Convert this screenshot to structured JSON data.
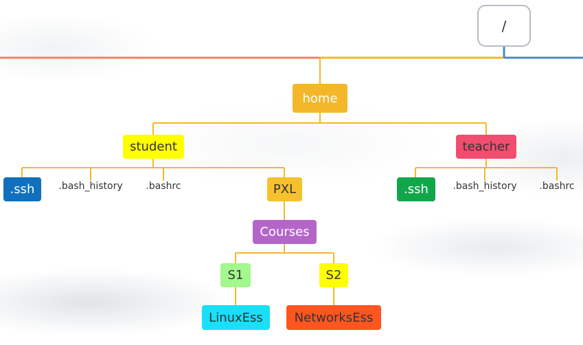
{
  "diagram": {
    "root": {
      "label": "/",
      "color": "#ffffff",
      "text_color": "#333333"
    },
    "home": {
      "label": "home",
      "color": "#f3b729",
      "text_color": "#ffffff"
    },
    "student": {
      "label": "student",
      "color": "#ffff00",
      "text_color": "#333333"
    },
    "teacher": {
      "label": "teacher",
      "color": "#f14d6f",
      "text_color": "#333333"
    },
    "student_children": {
      "ssh": {
        "label": ".ssh",
        "color": "#1070be",
        "text_color": "#ffffff"
      },
      "bash_history": {
        "label": ".bash_history"
      },
      "bashrc": {
        "label": ".bashrc"
      },
      "pxl": {
        "label": "PXL",
        "color": "#f6c12d",
        "text_color": "#333333"
      }
    },
    "teacher_children": {
      "ssh": {
        "label": ".ssh",
        "color": "#12a64b",
        "text_color": "#ffffff"
      },
      "bash_history": {
        "label": ".bash_history"
      },
      "bashrc": {
        "label": ".bashrc"
      }
    },
    "courses": {
      "label": "Courses",
      "color": "#b466c8",
      "text_color": "#ffffff"
    },
    "s1": {
      "label": "S1",
      "color": "#a2f78d",
      "text_color": "#333333"
    },
    "s2": {
      "label": "S2",
      "color": "#ffff00",
      "text_color": "#333333"
    },
    "linuxess": {
      "label": "LinuxEss",
      "color": "#17e0f8",
      "text_color": "#333333"
    },
    "networksess": {
      "label": "NetworksEss",
      "color": "#ff5520",
      "text_color": "#333333"
    },
    "colors": {
      "connector": "#f3b729",
      "top_line_left": "#f37f6c",
      "top_line_right": "#4d87c8"
    }
  }
}
